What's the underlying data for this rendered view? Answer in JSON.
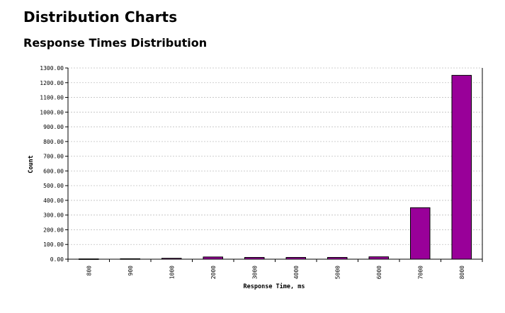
{
  "page": {
    "title": "Distribution Charts",
    "section_title": "Response Times Distribution"
  },
  "colors": {
    "bar_fill": "#990099",
    "bar_stroke": "#000000",
    "grid": "#c0c0c0"
  },
  "chart_data": {
    "type": "bar",
    "title": "",
    "xlabel": "Response Time, ms",
    "ylabel": "Count",
    "categories": [
      "800",
      "900",
      "1000",
      "2000",
      "3000",
      "4000",
      "5000",
      "6000",
      "7000",
      "8000"
    ],
    "values": [
      2,
      3,
      6,
      15,
      12,
      12,
      12,
      16,
      350,
      1250
    ],
    "ylim": [
      0,
      1300
    ],
    "yticks": [
      "0.00",
      "100.00",
      "200.00",
      "300.00",
      "400.00",
      "500.00",
      "600.00",
      "700.00",
      "800.00",
      "900.00",
      "1000.00",
      "1100.00",
      "1200.00",
      "1300.00"
    ],
    "ytick_step": 100,
    "grid": true,
    "legend": "none"
  }
}
